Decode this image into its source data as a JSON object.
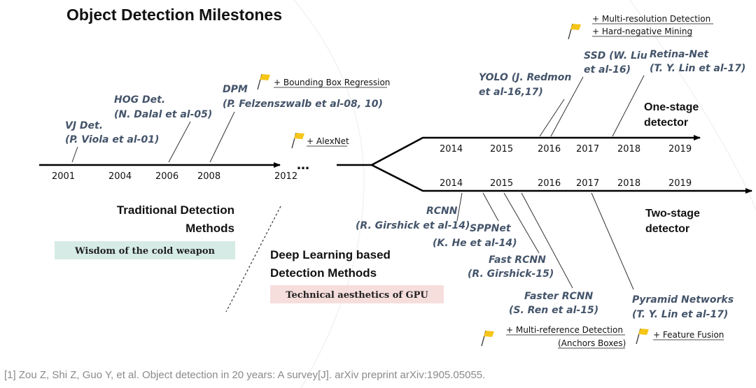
{
  "title": "Object Detection Milestones",
  "traditional_timeline": {
    "years": [
      "2001",
      "2004",
      "2006",
      "2008",
      "2012"
    ],
    "ellipsis": "…",
    "milestones": [
      {
        "name": "VJ Det.",
        "author": "(P. Viola et al-01)"
      },
      {
        "name": "HOG Det.",
        "author": "(N. Dalal et al-05)"
      },
      {
        "name": "DPM",
        "author": "(P. Felzenszwalb et al-08, 10)"
      }
    ],
    "notes": {
      "bbox_regression": "+ Bounding Box Regression",
      "alexnet": "+ AlexNet"
    }
  },
  "one_stage": {
    "label_line1": "One-stage",
    "label_line2": "detector",
    "years": [
      "2014",
      "2015",
      "2016",
      "2017",
      "2018",
      "2019"
    ],
    "milestones": [
      {
        "line1": "YOLO (J. Redmon",
        "line2": "et al-16,17)"
      },
      {
        "line1": "SSD (W. Liu",
        "line2": "et al-16)"
      },
      {
        "line1": "Retina-Net",
        "line2": "(T. Y. Lin et al-17)"
      }
    ],
    "notes": {
      "multi_resolution": "+ Multi-resolution Detection",
      "hard_negative": "+ Hard-negative Mining"
    }
  },
  "two_stage": {
    "label_line1": "Two-stage",
    "label_line2": "detector",
    "years": [
      "2014",
      "2015",
      "2016",
      "2017",
      "2018",
      "2019"
    ],
    "milestones": [
      {
        "line1": "RCNN",
        "line2": "(R. Girshick et al-14)"
      },
      {
        "line1": "SPPNet",
        "line2": "(K. He et al-14)"
      },
      {
        "line1": "Fast RCNN",
        "line2": "(R. Girshick-15)"
      },
      {
        "line1": "Faster RCNN",
        "line2": "(S. Ren et al-15)"
      },
      {
        "line1": "Pyramid Networks",
        "line2": "(T. Y. Lin et al-17)"
      }
    ],
    "notes": {
      "multi_reference": "+ Multi-reference Detection",
      "anchors": "(Anchors Boxes)",
      "feature_fusion": "+ Feature Fusion"
    }
  },
  "sections": {
    "traditional_line1": "Traditional Detection",
    "traditional_line2": "Methods",
    "traditional_badge": "Wisdom of the cold weapon",
    "deep_line1": "Deep Learning based",
    "deep_line2": "Detection Methods",
    "deep_badge": "Technical aesthetics of GPU"
  },
  "citation": "[1] Zou Z, Shi Z, Guo Y, et al. Object detection in 20 years: A survey[J]. arXiv preprint arXiv:1905.05055.",
  "colors": {
    "model_text": "#44546a",
    "flag": "#f5c518",
    "badge_green": "#d6ebe6",
    "badge_pink": "#f6dedd"
  }
}
